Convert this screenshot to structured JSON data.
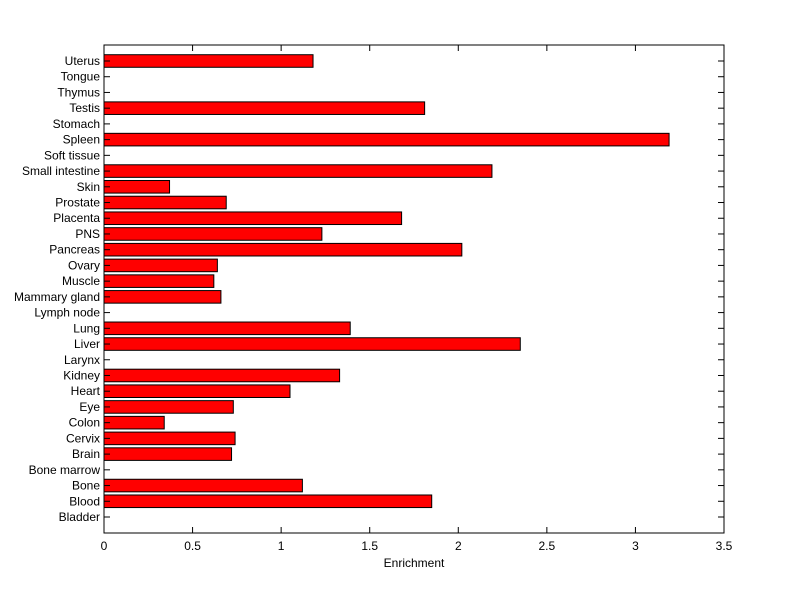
{
  "chart_data": {
    "type": "bar",
    "orientation": "horizontal",
    "categories": [
      "Bladder",
      "Blood",
      "Bone",
      "Bone marrow",
      "Brain",
      "Cervix",
      "Colon",
      "Eye",
      "Heart",
      "Kidney",
      "Larynx",
      "Liver",
      "Lung",
      "Lymph node",
      "Mammary gland",
      "Muscle",
      "Ovary",
      "Pancreas",
      "PNS",
      "Placenta",
      "Prostate",
      "Skin",
      "Small intestine",
      "Soft tissue",
      "Spleen",
      "Stomach",
      "Testis",
      "Thymus",
      "Tongue",
      "Uterus"
    ],
    "values": [
      0,
      1.85,
      1.12,
      0,
      0.72,
      0.74,
      0.34,
      0.73,
      1.05,
      1.33,
      0,
      2.35,
      1.39,
      0,
      0.66,
      0.62,
      0.64,
      2.02,
      1.23,
      1.68,
      0.69,
      0.37,
      2.19,
      0,
      3.19,
      0,
      1.81,
      0,
      0,
      1.18
    ],
    "xlabel": "Enrichment",
    "ylabel": "",
    "title": "",
    "xlim": [
      0,
      3.5
    ],
    "xticks": [
      "0",
      "0.5",
      "1",
      "1.5",
      "2",
      "2.5",
      "3",
      "3.5"
    ],
    "bar_color": "#ff0000",
    "bar_edge_color": "#000000",
    "grid": false,
    "legend": "none"
  }
}
